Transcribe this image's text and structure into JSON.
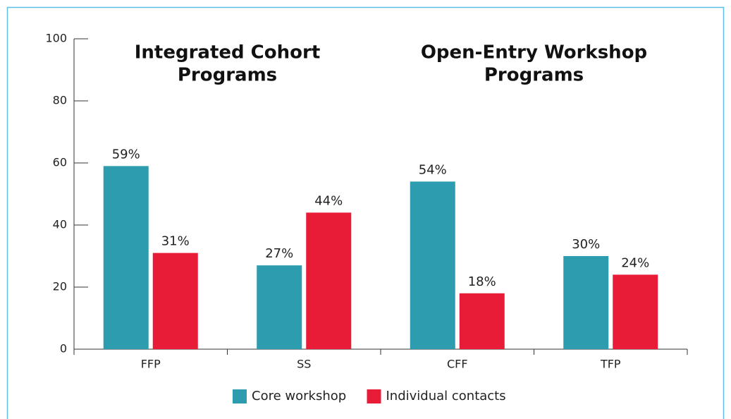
{
  "chart_data": {
    "type": "bar",
    "categories": [
      "FFP",
      "SS",
      "CFF",
      "TFP"
    ],
    "series": [
      {
        "name": "Core workshop",
        "color": "#2e9caf",
        "values": [
          59,
          27,
          54,
          30
        ],
        "value_labels": [
          "59%",
          "27%",
          "54%",
          "30%"
        ]
      },
      {
        "name": "Individual contacts",
        "color": "#e81c36",
        "values": [
          31,
          44,
          18,
          24
        ],
        "value_labels": [
          "31%",
          "44%",
          "18%",
          "24%"
        ]
      }
    ],
    "annotations": [
      [
        "Integrated Cohort",
        "Programs"
      ],
      [
        "Open-Entry Workshop",
        "Programs"
      ]
    ],
    "ylim": [
      0,
      100
    ],
    "yticks": [
      0,
      20,
      40,
      60,
      80,
      100
    ],
    "legend": "bottom"
  }
}
